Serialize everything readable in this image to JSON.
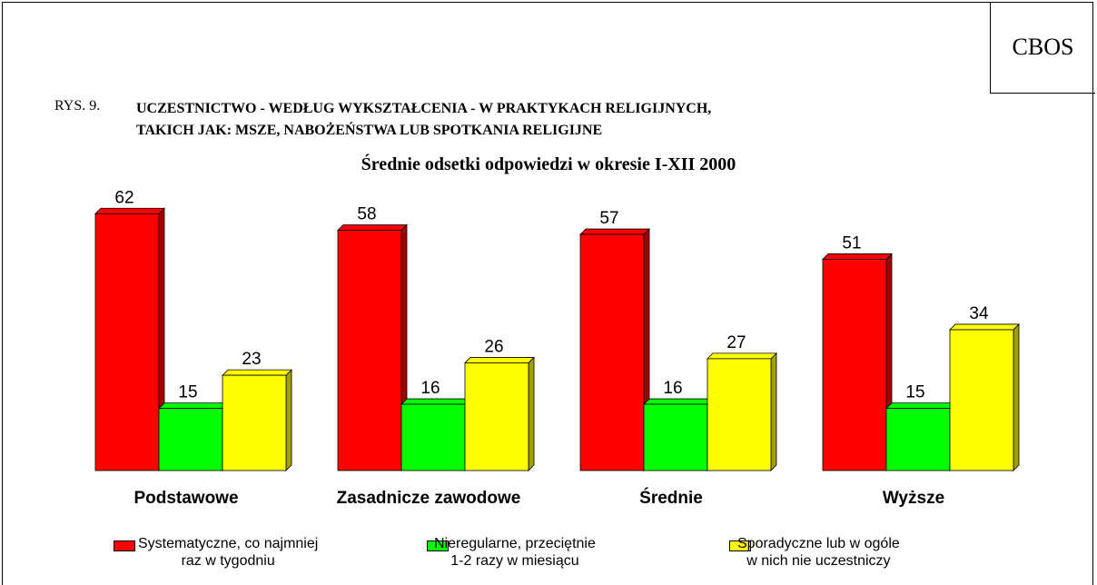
{
  "chart_data": {
    "type": "bar3d",
    "badge": "CBOS",
    "figure_label": "RYS. 9.",
    "title": "UCZESTNICTWO - WEDŁUG WYKSZTAŁCENIA - W PRAKTYKACH RELIGIJNYCH,\nTAKICH JAK: MSZE, NABOŻEŃSTWA LUB SPOTKANIA RELIGIJNE",
    "subtitle": "Średnie odsetki odpowiedzi w okresie I-XII 2000",
    "categories": [
      "Podstawowe",
      "Zasadnicze zawodowe",
      "Średnie",
      "Wyższe"
    ],
    "series": [
      {
        "name": "Systematyczne, co najmniej\nraz w tygodniu",
        "color": "#ff0000",
        "side": "#a00000",
        "values": [
          62,
          58,
          57,
          51
        ]
      },
      {
        "name": "Nieregularne, przeciętnie\n1-2 razy w miesiącu",
        "color": "#00ff00",
        "side": "#00a000",
        "values": [
          15,
          16,
          16,
          15
        ]
      },
      {
        "name": "Sporadyczne lub w ogóle\nw nich nie uczestniczy",
        "color": "#ffff00",
        "side": "#a0a000",
        "values": [
          23,
          26,
          27,
          34
        ]
      }
    ]
  }
}
